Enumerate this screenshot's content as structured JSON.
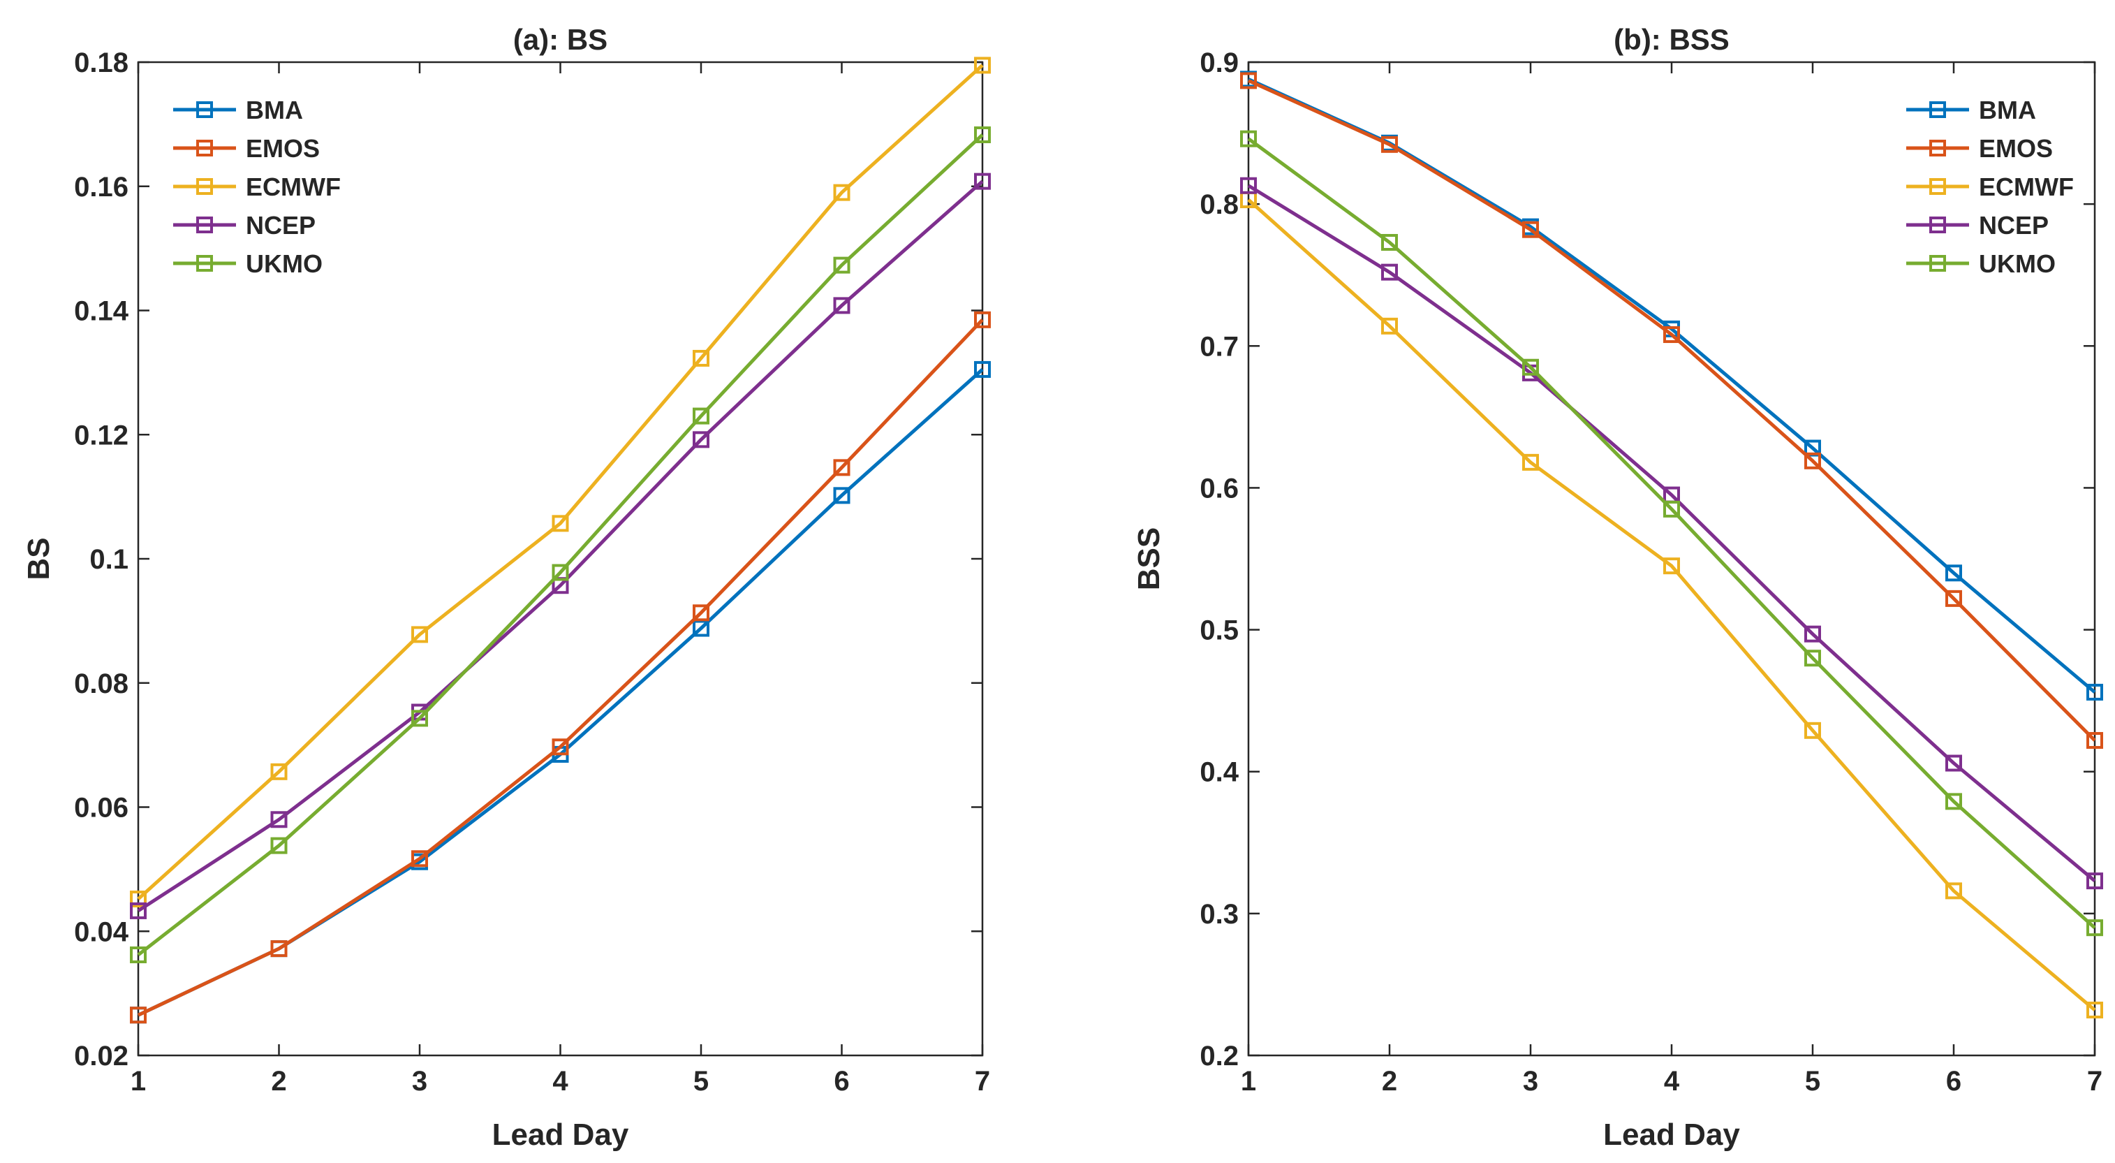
{
  "chart_data": [
    {
      "type": "line",
      "title": "(a): BS",
      "xlabel": "Lead Day",
      "ylabel": "BS",
      "x": [
        1,
        2,
        3,
        4,
        5,
        6,
        7
      ],
      "xlim": [
        1,
        7
      ],
      "ylim": [
        0.02,
        0.18
      ],
      "xticks": [
        "1",
        "2",
        "3",
        "4",
        "5",
        "6",
        "7"
      ],
      "yticks": [
        0.02,
        0.04,
        0.06,
        0.08,
        0.1,
        0.12,
        0.14,
        0.16,
        0.18
      ],
      "ytick_labels": [
        "0.02",
        "0.04",
        "0.06",
        "0.08",
        "0.1",
        "0.12",
        "0.14",
        "0.16",
        "0.18"
      ],
      "grid": false,
      "legend_position": "top-left",
      "series": [
        {
          "name": "BMA",
          "color": "#0072BD",
          "values": [
            0.0265,
            0.0372,
            0.0512,
            0.0685,
            0.0888,
            0.1102,
            0.1305
          ]
        },
        {
          "name": "EMOS",
          "color": "#D95319",
          "values": [
            0.0265,
            0.0372,
            0.0517,
            0.0697,
            0.0913,
            0.1147,
            0.1385
          ]
        },
        {
          "name": "ECMWF",
          "color": "#EDB120",
          "values": [
            0.0452,
            0.0657,
            0.0878,
            0.1057,
            0.1323,
            0.159,
            0.1795
          ]
        },
        {
          "name": "NCEP",
          "color": "#7E2F8E",
          "values": [
            0.0433,
            0.058,
            0.0753,
            0.0957,
            0.1192,
            0.1408,
            0.1608
          ]
        },
        {
          "name": "UKMO",
          "color": "#77AC30",
          "values": [
            0.0362,
            0.0538,
            0.0743,
            0.0978,
            0.123,
            0.1473,
            0.1683
          ]
        }
      ]
    },
    {
      "type": "line",
      "title": "(b): BSS",
      "xlabel": "Lead Day",
      "ylabel": "BSS",
      "x": [
        1,
        2,
        3,
        4,
        5,
        6,
        7
      ],
      "xlim": [
        1,
        7
      ],
      "ylim": [
        0.2,
        0.9
      ],
      "xticks": [
        "1",
        "2",
        "3",
        "4",
        "5",
        "6",
        "7"
      ],
      "yticks": [
        0.2,
        0.3,
        0.4,
        0.5,
        0.6,
        0.7,
        0.8,
        0.9
      ],
      "ytick_labels": [
        "0.2",
        "0.3",
        "0.4",
        "0.5",
        "0.6",
        "0.7",
        "0.8",
        "0.9"
      ],
      "grid": false,
      "legend_position": "top-right",
      "series": [
        {
          "name": "BMA",
          "color": "#0072BD",
          "values": [
            0.888,
            0.843,
            0.784,
            0.712,
            0.628,
            0.54,
            0.456
          ]
        },
        {
          "name": "EMOS",
          "color": "#D95319",
          "values": [
            0.887,
            0.842,
            0.782,
            0.708,
            0.619,
            0.522,
            0.422
          ]
        },
        {
          "name": "ECMWF",
          "color": "#EDB120",
          "values": [
            0.803,
            0.714,
            0.618,
            0.545,
            0.429,
            0.316,
            0.232
          ]
        },
        {
          "name": "NCEP",
          "color": "#7E2F8E",
          "values": [
            0.813,
            0.752,
            0.681,
            0.595,
            0.497,
            0.406,
            0.323
          ]
        },
        {
          "name": "UKMO",
          "color": "#77AC30",
          "values": [
            0.846,
            0.773,
            0.685,
            0.585,
            0.48,
            0.379,
            0.29
          ]
        }
      ]
    }
  ]
}
